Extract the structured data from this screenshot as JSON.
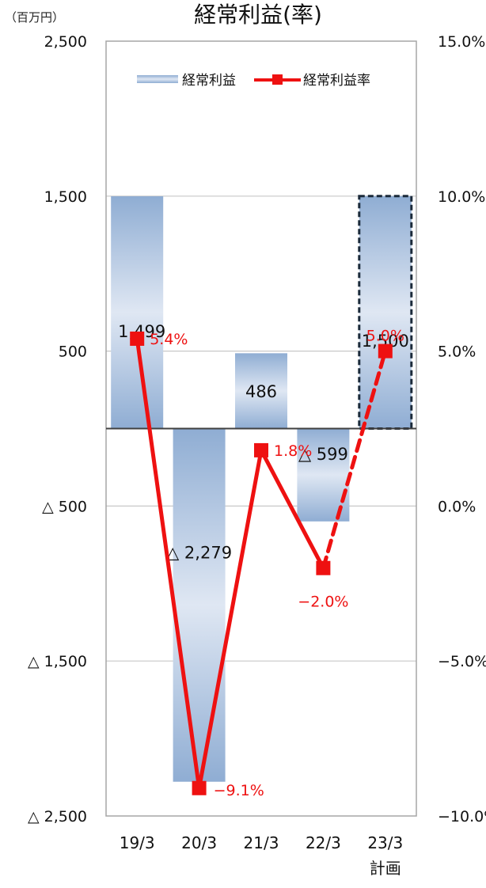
{
  "chart_data": {
    "type": "bar",
    "title": "経常利益(率)",
    "unit_label": "（百万円）",
    "categories": [
      "19/3",
      "20/3",
      "21/3",
      "22/3",
      "23/3"
    ],
    "category_sublabels": [
      "",
      "",
      "",
      "",
      "計画"
    ],
    "left_axis": {
      "ylim": [
        -2500,
        2500
      ],
      "ticks": [
        2500,
        1500,
        500,
        -500,
        -1500,
        -2500
      ],
      "tick_labels": [
        "2,500",
        "1,500",
        "500",
        "△ 500",
        "△ 1,500",
        "△ 2,500"
      ]
    },
    "right_axis": {
      "ylim": [
        -10.0,
        15.0
      ],
      "ticks": [
        15.0,
        10.0,
        5.0,
        0.0,
        -5.0,
        -10.0
      ],
      "tick_labels": [
        "15.0%",
        "10.0%",
        "5.0%",
        "0.0%",
        "−5.0%",
        "−10.0%"
      ]
    },
    "grid": true,
    "legend_position": "top",
    "series": [
      {
        "name": "経常利益",
        "type": "bar",
        "axis": "left",
        "values": [
          1499,
          -2279,
          486,
          -599,
          1500
        ],
        "data_labels": [
          "1,499",
          "△ 2,279",
          "486",
          "△ 599",
          "1,500"
        ],
        "forecast_index": 4
      },
      {
        "name": "経常利益率",
        "type": "line",
        "axis": "right",
        "values": [
          5.4,
          -9.1,
          1.8,
          -2.0,
          5.0
        ],
        "data_labels": [
          "5.4%",
          "−9.1%",
          "1.8%",
          "−2.0%",
          "5.0%"
        ],
        "forecast_index": 4
      }
    ],
    "colors": {
      "bar_edge": "#8fadd3",
      "bar_mid": "#dfe7f3",
      "line": "#ee1111",
      "forecast_border": "#1b2a3a",
      "grid": "#c8c8c8",
      "frame": "#a6a6a6"
    }
  }
}
